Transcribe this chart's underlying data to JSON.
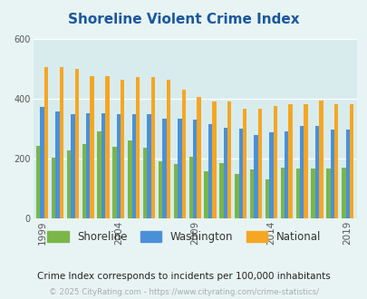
{
  "title": "Shoreline Violent Crime Index",
  "title_color": "#1a56a0",
  "years": [
    1999,
    2000,
    2001,
    2002,
    2003,
    2004,
    2005,
    2006,
    2007,
    2008,
    2009,
    2010,
    2011,
    2012,
    2013,
    2014,
    2015,
    2016,
    2017,
    2018,
    2019
  ],
  "shoreline": [
    243,
    202,
    228,
    247,
    290,
    238,
    260,
    236,
    191,
    183,
    205,
    158,
    184,
    148,
    163,
    130,
    168,
    165,
    165,
    165,
    168
  ],
  "washington": [
    372,
    357,
    347,
    352,
    352,
    349,
    349,
    347,
    333,
    333,
    330,
    316,
    303,
    301,
    277,
    287,
    290,
    308,
    308,
    298,
    298
  ],
  "national": [
    507,
    507,
    500,
    474,
    474,
    463,
    472,
    472,
    464,
    430,
    405,
    390,
    390,
    367,
    367,
    375,
    380,
    380,
    395,
    380,
    380
  ],
  "shoreline_color": "#7ab648",
  "washington_color": "#4a90d9",
  "national_color": "#f5a623",
  "bg_color": "#e8f4f4",
  "plot_bg_color": "#d8ecee",
  "ylim": [
    0,
    600
  ],
  "yticks": [
    0,
    200,
    400,
    600
  ],
  "xlabel_ticks": [
    1999,
    2004,
    2009,
    2014,
    2019
  ],
  "footer_note": "Crime Index corresponds to incidents per 100,000 inhabitants",
  "footer_credit": "© 2025 CityRating.com - https://www.cityrating.com/crime-statistics/",
  "legend_labels": [
    "Shoreline",
    "Washington",
    "National"
  ]
}
